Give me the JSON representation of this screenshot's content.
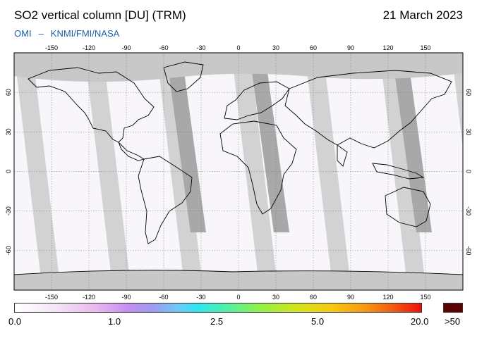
{
  "header": {
    "title": "SO2 vertical column [DU] (TRM)",
    "date": "21 March 2023",
    "credit_left": "OMI",
    "credit_sep": "–",
    "credit_right": "KNMI/FMI/NASA"
  },
  "map": {
    "lon_ticks": [
      "-150",
      "-120",
      "-90",
      "-60",
      "-30",
      "0",
      "30",
      "60",
      "90",
      "120",
      "150"
    ],
    "lat_ticks": [
      "60",
      "30",
      "0",
      "-30",
      "-60"
    ],
    "colors": {
      "land_outline": "#000000",
      "swath_gap": "#d2d2d2",
      "orbit_gap_dark": "#a8a8a8",
      "no_data_polar": "#c8c8c8",
      "valid_data": "#f8f6fa"
    }
  },
  "colorbar": {
    "labels": [
      "0.0",
      "1.0",
      "2.5",
      "5.0",
      "20.0"
    ],
    "overflow_label": ">50",
    "overflow_color": "#5a0000"
  }
}
